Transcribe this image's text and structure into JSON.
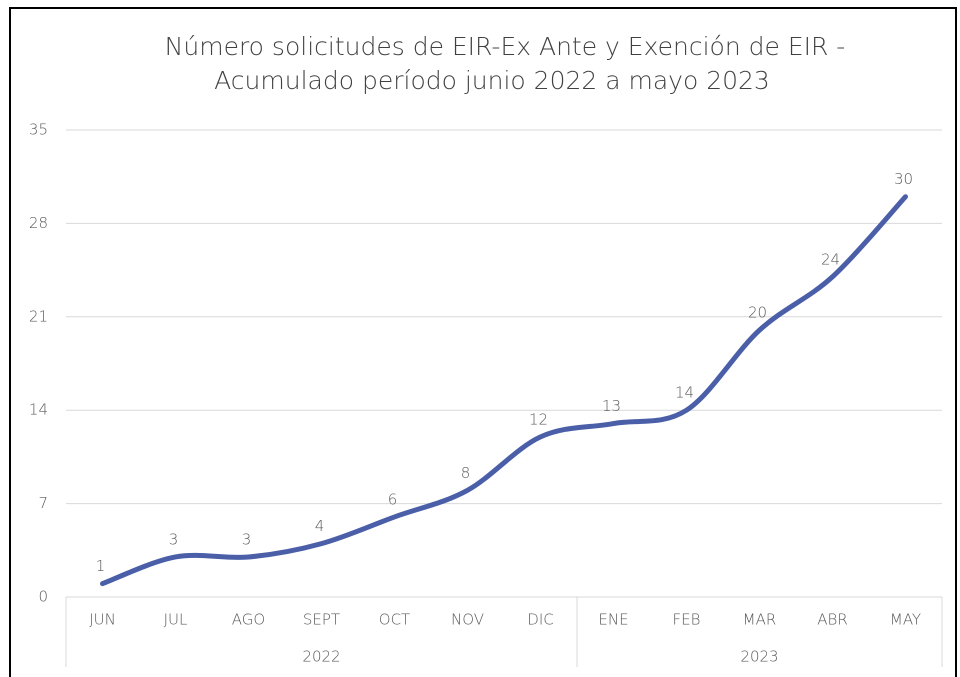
{
  "chart_data": {
    "type": "line",
    "title": [
      "Número solicitudes de EIR-Ex Ante y Exención de EIR -",
      "Acumulado período junio 2022 a mayo 2023"
    ],
    "category_groups": [
      {
        "name": "2022",
        "categories": [
          "JUN",
          "JUL",
          "AGO",
          "SEPT",
          "OCT",
          "NOV",
          "DIC"
        ]
      },
      {
        "name": "2023",
        "categories": [
          "ENE",
          "FEB",
          "MAR",
          "ABR",
          "MAY"
        ]
      }
    ],
    "series": [
      {
        "color": "#4a5fa8",
        "values": [
          1,
          3,
          3,
          4,
          6,
          8,
          12,
          13,
          14,
          20,
          24,
          30
        ]
      }
    ],
    "ylim": [
      0,
      35
    ],
    "yticks": [
      0,
      7,
      14,
      21,
      28,
      35
    ],
    "grid": true,
    "smooth": true
  }
}
